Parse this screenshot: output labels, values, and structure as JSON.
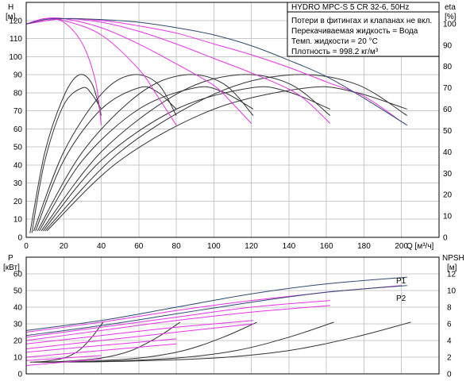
{
  "chart_data": [
    {
      "type": "line",
      "title": "HYDRO MPC-S 5 CR 32-6, 50Hz",
      "annotations": [
        "Потери в фитингах и клапанах не вкл.",
        "Перекачиваемая жидкость = Вода",
        "Темп. жидкости = 20 °C",
        "Плотность = 998.2 кг/м³"
      ],
      "xlabel": "Q [м³/ч]",
      "ylabel_left": [
        "H",
        "[м]"
      ],
      "ylabel_right": [
        "eta",
        "[%]"
      ],
      "xlim": [
        0,
        220
      ],
      "ylim_left": [
        0,
        130
      ],
      "ylim_right": [
        0,
        110
      ],
      "x_ticks": [
        0,
        20,
        40,
        60,
        80,
        100,
        120,
        140,
        160,
        180,
        200
      ],
      "y_ticks_left": [
        0,
        10,
        20,
        30,
        40,
        50,
        60,
        70,
        80,
        90,
        100,
        110,
        120
      ],
      "y_ticks_right": [
        0,
        10,
        20,
        30,
        40,
        50,
        60,
        70,
        80,
        90,
        100
      ],
      "grid": true,
      "head_curves_max_pump": {
        "color": "#2d4a6e",
        "x": [
          0,
          10,
          20,
          40,
          60,
          80,
          100,
          120,
          140,
          160,
          180,
          203
        ],
        "y": [
          118,
          120.5,
          121,
          120.5,
          119,
          116,
          112,
          106,
          98,
          89,
          77,
          62
        ]
      },
      "head_curves_pumps": {
        "color": "#e633e6",
        "series": [
          {
            "x": [
              0,
              10,
              20,
              30,
              37,
              40
            ],
            "y": [
              118,
              121,
              119,
              107,
              86,
              62
            ]
          },
          {
            "x": [
              0,
              10,
              20,
              40,
              60,
              70,
              80
            ],
            "y": [
              118,
              121,
              120,
              112,
              93,
              78,
              62
            ]
          },
          {
            "x": [
              0,
              10,
              20,
              40,
              60,
              80,
              100,
              110,
              120
            ],
            "y": [
              118,
              121,
              121,
              116,
              107,
              96,
              84,
              74,
              63
            ]
          },
          {
            "x": [
              0,
              20,
              40,
              60,
              80,
              100,
              120,
              140,
              150,
              162
            ],
            "y": [
              118,
              121,
              119,
              114,
              107,
              99,
              91,
              82,
              75,
              63
            ]
          },
          {
            "x": [
              0,
              20,
              40,
              60,
              80,
              100,
              120,
              140,
              160,
              180,
              200
            ],
            "y": [
              118,
              121,
              120,
              117,
              113,
              107,
              101,
              94,
              86,
              78,
              64
            ]
          }
        ]
      },
      "efficiency_curves": {
        "color": "#333333",
        "series": [
          {
            "x": [
              2,
              10,
              20,
              28,
              35,
              40
            ],
            "y": [
              2,
              40,
              66,
              76,
              72,
              57
            ]
          },
          {
            "x": [
              3,
              10,
              20,
              30,
              35,
              40
            ],
            "y": [
              2,
              36,
              62,
              70,
              67,
              60
            ]
          },
          {
            "x": [
              4,
              20,
              40,
              56,
              70,
              80
            ],
            "y": [
              3,
              40,
              67,
              76,
              72,
              57
            ]
          },
          {
            "x": [
              5,
              20,
              40,
              60,
              70,
              80
            ],
            "y": [
              3,
              36,
              60,
              70,
              68,
              60
            ]
          },
          {
            "x": [
              6,
              30,
              60,
              84,
              105,
              121
            ],
            "y": [
              3,
              40,
              67,
              76,
              72,
              57
            ]
          },
          {
            "x": [
              7,
              30,
              60,
              90,
              105,
              121
            ],
            "y": [
              3,
              36,
              60,
              70,
              68,
              60
            ]
          },
          {
            "x": [
              8,
              40,
              80,
              112,
              140,
              162
            ],
            "y": [
              3,
              40,
              67,
              76,
              72,
              57
            ]
          },
          {
            "x": [
              9,
              40,
              80,
              120,
              140,
              162
            ],
            "y": [
              3,
              36,
              60,
              70,
              68,
              60
            ]
          },
          {
            "x": [
              10,
              50,
              100,
              140,
              175,
              203
            ],
            "y": [
              3,
              40,
              67,
              76,
              72,
              57
            ]
          },
          {
            "x": [
              11,
              50,
              100,
              150,
              175,
              203
            ],
            "y": [
              3,
              36,
              60,
              70,
              68,
              60
            ]
          }
        ]
      }
    },
    {
      "type": "line",
      "ylabel_left": [
        "P",
        "[кВт]"
      ],
      "ylabel_right": [
        "NPSH",
        "[м]"
      ],
      "xlim": [
        0,
        220
      ],
      "ylim_left": [
        0,
        70
      ],
      "ylim_right": [
        0,
        14
      ],
      "y_ticks_left": [
        0,
        10,
        20,
        30,
        40,
        50,
        60
      ],
      "y_ticks_right": [
        0,
        2,
        4,
        6,
        8,
        10,
        12
      ],
      "grid": true,
      "power_series": [
        {
          "name": "P1",
          "color": "#2d4a6e",
          "x": [
            0,
            40,
            80,
            120,
            160,
            203
          ],
          "y": [
            26,
            32,
            40,
            48,
            54,
            58
          ]
        },
        {
          "name": "P2",
          "color": "#2d4a6e",
          "x": [
            0,
            40,
            80,
            120,
            160,
            203
          ],
          "y": [
            23,
            29,
            36,
            43,
            49,
            53
          ]
        }
      ],
      "power_pump_curves": {
        "color": "#e633e6",
        "series": [
          {
            "x": [
              0,
              20,
              40
            ],
            "y": [
              5,
              7,
              9
            ]
          },
          {
            "x": [
              0,
              20,
              40
            ],
            "y": [
              8,
              9.5,
              11
            ]
          },
          {
            "x": [
              0,
              40,
              80
            ],
            "y": [
              10,
              14,
              18
            ]
          },
          {
            "x": [
              0,
              40,
              80
            ],
            "y": [
              13,
              17,
              21
            ]
          },
          {
            "x": [
              0,
              40,
              80,
              121
            ],
            "y": [
              15,
              20,
              25,
              30
            ]
          },
          {
            "x": [
              0,
              40,
              80,
              121
            ],
            "y": [
              18,
              23,
              28,
              32
            ]
          },
          {
            "x": [
              0,
              40,
              80,
              120,
              162
            ],
            "y": [
              20,
              26,
              32,
              37,
              41
            ]
          },
          {
            "x": [
              0,
              40,
              80,
              120,
              162
            ],
            "y": [
              22,
              28,
              34,
              40,
              44
            ]
          },
          {
            "x": [
              0,
              40,
              80,
              120,
              160,
              200
            ],
            "y": [
              25,
              31,
              38,
              44,
              49,
              53
            ]
          }
        ]
      },
      "npsh_curves": {
        "color": "#333333",
        "series": [
          {
            "x": [
              2,
              10,
              20,
              28,
              35,
              41
            ],
            "y": [
              1.4,
              1.5,
              1.9,
              2.8,
              4.4,
              6.2
            ]
          },
          {
            "x": [
              4,
              20,
              40,
              56,
              70,
              82
            ],
            "y": [
              1.4,
              1.5,
              1.9,
              2.8,
              4.4,
              6.2
            ]
          },
          {
            "x": [
              6,
              30,
              60,
              84,
              105,
              123
            ],
            "y": [
              1.4,
              1.5,
              1.9,
              2.8,
              4.4,
              6.2
            ]
          },
          {
            "x": [
              8,
              40,
              80,
              112,
              140,
              164
            ],
            "y": [
              1.4,
              1.5,
              1.9,
              2.8,
              4.4,
              6.2
            ]
          },
          {
            "x": [
              10,
              50,
              100,
              140,
              175,
              205
            ],
            "y": [
              1.4,
              1.5,
              1.9,
              2.8,
              4.4,
              6.2
            ]
          }
        ]
      }
    }
  ]
}
